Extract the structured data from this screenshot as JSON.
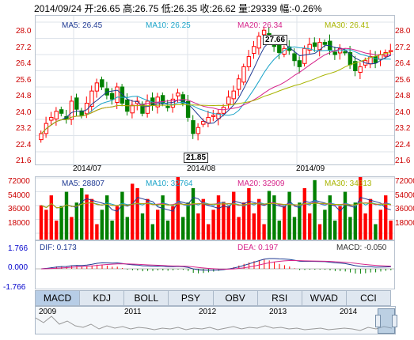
{
  "header": {
    "summary": "2014/09/24 开:26.65 高:26.75 低:26.35 收:26.62 量:29339 幅:-0.26%"
  },
  "price": {
    "ma5": "MA5: 26.45",
    "ma10": "MA10: 26.25",
    "ma20": "MA20: 26.34",
    "ma30": "MA30: 26.41",
    "y_labels": [
      "28.0",
      "27.2",
      "26.4",
      "25.6",
      "24.8",
      "24.0",
      "23.2",
      "22.4",
      "21.6"
    ],
    "x_labels": [
      "2014/07",
      "2014/08",
      "2014/09"
    ],
    "high_label": "27.66",
    "low_label": "21.85"
  },
  "volume": {
    "ma5": "MA5: 28807",
    "ma10": "MA10: 32764",
    "ma20": "MA20: 32909",
    "ma30": "MA30: 34813",
    "y_labels": [
      "72000",
      "54000",
      "36000",
      "18000"
    ]
  },
  "macd": {
    "dif": "DIF: 0.173",
    "dea": "DEA: 0.197",
    "macd": "MACD: -0.050",
    "y_labels": [
      "1.766",
      "0.000",
      "-1.766"
    ]
  },
  "tabs": [
    "MACD",
    "KDJ",
    "BOLL",
    "PSY",
    "OBV",
    "RSI",
    "WVAD",
    "CCI"
  ],
  "timeline": {
    "years": [
      "2009",
      "2011",
      "2012",
      "2013",
      "2014"
    ]
  },
  "colors": {
    "up": "#ff0000",
    "down": "#008000",
    "ma5": "#1f3a93",
    "ma10": "#1aa3c8",
    "ma20": "#d6248a",
    "ma30": "#a8b400"
  }
}
